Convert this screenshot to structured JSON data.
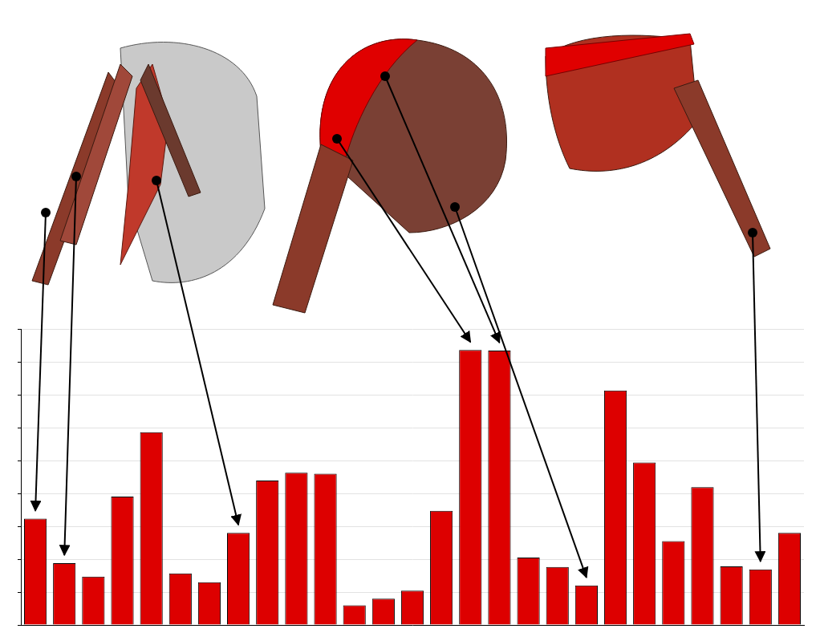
{
  "chart_data": {
    "type": "bar",
    "categories": [
      null,
      null,
      null,
      null,
      null,
      null,
      null,
      null,
      null,
      null,
      null,
      null,
      null,
      null,
      null,
      null,
      null,
      null,
      null,
      null,
      null,
      null,
      null,
      null,
      null,
      null,
      null
    ],
    "values": [
      3.23,
      1.88,
      1.47,
      3.9,
      5.86,
      1.57,
      1.3,
      2.8,
      4.39,
      4.63,
      4.6,
      0.6,
      0.8,
      1.04,
      3.47,
      8.36,
      8.34,
      2.05,
      1.76,
      1.2,
      7.13,
      4.94,
      2.55,
      4.19,
      1.78,
      1.69,
      2.8
    ],
    "color": "#dd0000",
    "ylim": [
      0,
      9
    ],
    "yticks": [
      0,
      1,
      2,
      3,
      4,
      5,
      6,
      7,
      8,
      9
    ],
    "grid": true,
    "tick_labels": false
  }
}
